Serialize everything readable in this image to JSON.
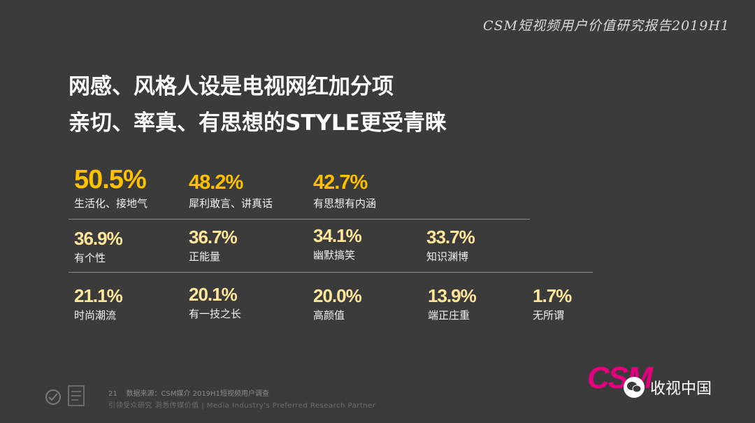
{
  "report_title": "CSM短视频用户价值研究报告2019H1",
  "headline": {
    "line1": "网感、风格人设是电视网红加分项",
    "line2": "亲切、率真、有思想的STYLE更受青睐"
  },
  "stats": [
    {
      "pct": "50.5%",
      "label": "生活化、接地气"
    },
    {
      "pct": "48.2%",
      "label": "犀利敢言、讲真话"
    },
    {
      "pct": "42.7%",
      "label": "有思想有内涵"
    },
    {
      "pct": "36.9%",
      "label": "有个性"
    },
    {
      "pct": "36.7%",
      "label": "正能量"
    },
    {
      "pct": "34.1%",
      "label": "幽默搞笑"
    },
    {
      "pct": "33.7%",
      "label": "知识渊博"
    },
    {
      "pct": "21.1%",
      "label": "时尚潮流"
    },
    {
      "pct": "20.1%",
      "label": "有一技之长"
    },
    {
      "pct": "20.0%",
      "label": "高颜值"
    },
    {
      "pct": "13.9%",
      "label": "端正庄重"
    },
    {
      "pct": "1.7%",
      "label": "无所谓"
    }
  ],
  "footer": {
    "page_number": "21",
    "source": "数据来源：CSM媒介 2019H1短视频用户调查",
    "tagline": "引领受众研究  洞悉传媒价值 | Media Industry's Preferred Research Partner"
  },
  "brand": {
    "logo_text": "CSM",
    "wechat_name": "收视中国"
  },
  "colors": {
    "background": "#3b3b3b",
    "highlight": "#ffc000",
    "secondary_highlight": "#ffe699",
    "brand_pink": "#e5007f"
  }
}
